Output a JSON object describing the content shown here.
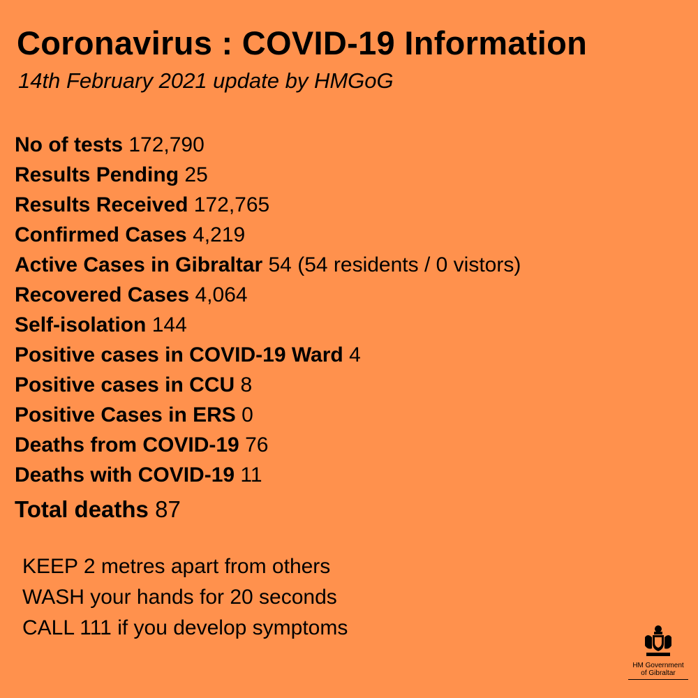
{
  "header": {
    "title": "Coronavirus : COVID-19 Information",
    "subtitle": "14th February 2021 update by HMGoG"
  },
  "stats": [
    {
      "label": "No of tests",
      "value": "172,790"
    },
    {
      "label": "Results Pending",
      "value": "25"
    },
    {
      "label": "Results Received",
      "value": "172,765"
    },
    {
      "label": "Confirmed Cases",
      "value": "4,219"
    },
    {
      "label": "Active Cases in Gibraltar",
      "value": "54 (54 residents / 0 vistors)"
    },
    {
      "label": "Recovered Cases",
      "value": "4,064"
    },
    {
      "label": "Self-isolation",
      "value": "144"
    },
    {
      "label": "Positive cases in COVID-19 Ward",
      "value": "4"
    },
    {
      "label": "Positive cases in CCU",
      "value": "8"
    },
    {
      "label": "Positive Cases in ERS",
      "value": "0"
    },
    {
      "label": "Deaths from COVID-19",
      "value": "76"
    },
    {
      "label": "Deaths with COVID-19",
      "value": "11"
    },
    {
      "label": "Total deaths",
      "value": "87"
    }
  ],
  "advice": [
    "KEEP 2 metres apart from others",
    "WASH your hands for 20 seconds",
    "CALL 111 if you develop symptoms"
  ],
  "logo": {
    "line1": "HM Government",
    "line2": "of Gibraltar",
    "icon": "coat-of-arms-icon"
  },
  "colors": {
    "background": "#FF914D",
    "text": "#000000"
  }
}
